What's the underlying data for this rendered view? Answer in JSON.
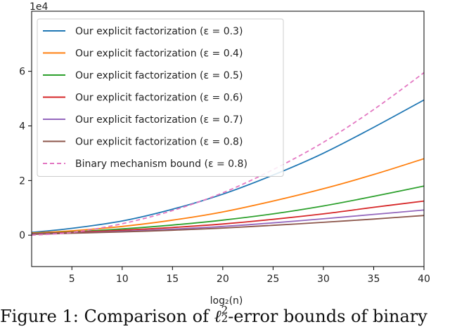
{
  "chart_data": {
    "type": "line",
    "title": "",
    "xlabel": "log₂(n)",
    "ylabel": "",
    "y_scale_label": "1e4",
    "xlim": [
      1,
      40
    ],
    "ylim": [
      -1.15,
      8.2
    ],
    "x_ticks": [
      5,
      10,
      15,
      20,
      25,
      30,
      35,
      40
    ],
    "y_ticks": [
      0,
      2,
      4,
      6
    ],
    "grid": false,
    "legend_position": "top-left",
    "x": [
      1,
      5,
      10,
      15,
      20,
      25,
      30,
      35,
      40
    ],
    "series": [
      {
        "name": "Our explicit factorization (ε = 0.3)",
        "color": "#1f77b4",
        "dash": "solid",
        "values": [
          0.1,
          0.25,
          0.52,
          0.95,
          1.5,
          2.2,
          3.0,
          3.95,
          4.95
        ]
      },
      {
        "name": "Our explicit factorization (ε = 0.4)",
        "color": "#ff7f0e",
        "dash": "solid",
        "values": [
          0.08,
          0.16,
          0.32,
          0.55,
          0.85,
          1.25,
          1.7,
          2.22,
          2.8
        ]
      },
      {
        "name": "Our explicit factorization (ε = 0.5)",
        "color": "#2ca02c",
        "dash": "solid",
        "values": [
          0.06,
          0.12,
          0.23,
          0.37,
          0.55,
          0.78,
          1.07,
          1.42,
          1.8
        ]
      },
      {
        "name": "Our explicit factorization (ε = 0.6)",
        "color": "#d62728",
        "dash": "solid",
        "values": [
          0.05,
          0.1,
          0.18,
          0.28,
          0.41,
          0.58,
          0.78,
          1.02,
          1.25
        ]
      },
      {
        "name": "Our explicit factorization (ε = 0.7)",
        "color": "#9467bd",
        "dash": "solid",
        "values": [
          0.04,
          0.08,
          0.14,
          0.22,
          0.32,
          0.45,
          0.6,
          0.76,
          0.92
        ]
      },
      {
        "name": "Our explicit factorization (ε = 0.8)",
        "color": "#8c564b",
        "dash": "solid",
        "values": [
          0.03,
          0.07,
          0.12,
          0.18,
          0.26,
          0.36,
          0.47,
          0.59,
          0.72
        ]
      },
      {
        "name": "Binary mechanism bound (ε = 0.8)",
        "color": "#e377c2",
        "dash": "dashed",
        "values": [
          0.0,
          0.1,
          0.42,
          0.9,
          1.55,
          2.4,
          3.4,
          4.6,
          5.95
        ]
      }
    ]
  },
  "caption": {
    "prefix": "Figure 1:  Comparison of ",
    "symbol": "ℓ",
    "sup": "2",
    "sub": "2",
    "suffix": "-error bounds of binary"
  }
}
